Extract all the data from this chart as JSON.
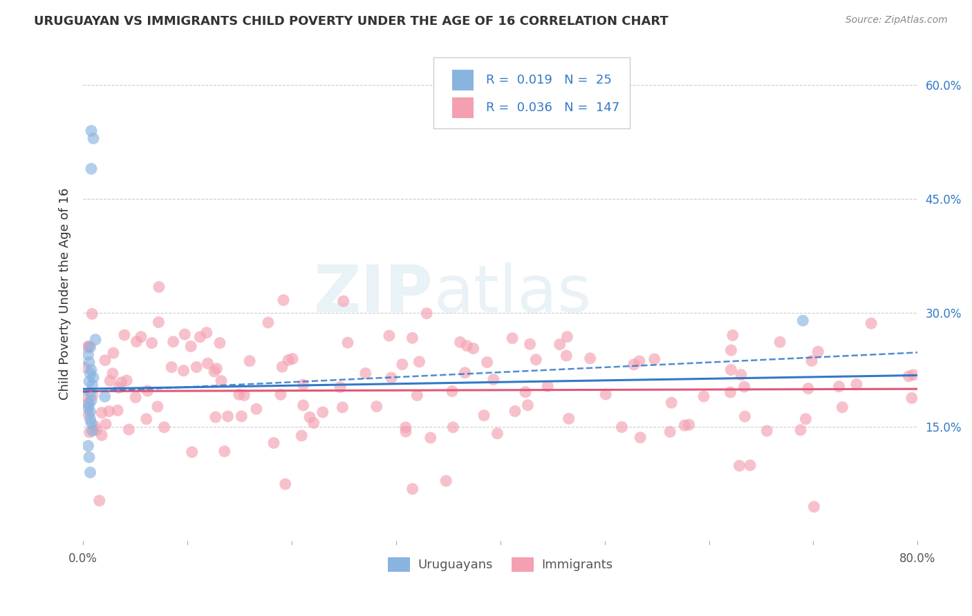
{
  "title": "URUGUAYAN VS IMMIGRANTS CHILD POVERTY UNDER THE AGE OF 16 CORRELATION CHART",
  "source": "Source: ZipAtlas.com",
  "ylabel": "Child Poverty Under the Age of 16",
  "xlim": [
    0.0,
    0.8
  ],
  "ylim": [
    0.0,
    0.65
  ],
  "yticks": [
    0.15,
    0.3,
    0.45,
    0.6
  ],
  "ytick_labels": [
    "15.0%",
    "30.0%",
    "45.0%",
    "60.0%"
  ],
  "legend_labels": [
    "Uruguayans",
    "Immigrants"
  ],
  "R_uruguayan": 0.019,
  "N_uruguayan": 25,
  "R_immigrant": 0.036,
  "N_immigrant": 147,
  "uruguayan_color": "#8ab4e0",
  "immigrant_color": "#f4a0b0",
  "background_color": "#ffffff",
  "watermark_zip": "ZIP",
  "watermark_atlas": "atlas",
  "grid_color": "#cccccc",
  "trend_uru_solid_y0": 0.2,
  "trend_uru_solid_y1": 0.218,
  "trend_uru_dashed_y0": 0.196,
  "trend_uru_dashed_y1": 0.248,
  "trend_imm_solid_y0": 0.197,
  "trend_imm_solid_y1": 0.2,
  "uru_scatter_x": [
    0.008,
    0.01,
    0.008,
    0.012,
    0.007,
    0.005,
    0.006,
    0.008,
    0.007,
    0.01,
    0.006,
    0.009,
    0.007,
    0.008,
    0.006,
    0.005,
    0.007,
    0.007,
    0.008,
    0.009,
    0.021,
    0.005,
    0.006,
    0.007,
    0.69
  ],
  "uru_scatter_y": [
    0.54,
    0.53,
    0.49,
    0.265,
    0.255,
    0.245,
    0.235,
    0.225,
    0.22,
    0.215,
    0.21,
    0.205,
    0.195,
    0.185,
    0.18,
    0.175,
    0.17,
    0.16,
    0.155,
    0.145,
    0.19,
    0.125,
    0.11,
    0.09,
    0.29
  ],
  "imm_scatter_seed": 42,
  "title_fontsize": 13,
  "source_fontsize": 10,
  "tick_fontsize": 12,
  "legend_fontsize": 13,
  "ylabel_fontsize": 13
}
